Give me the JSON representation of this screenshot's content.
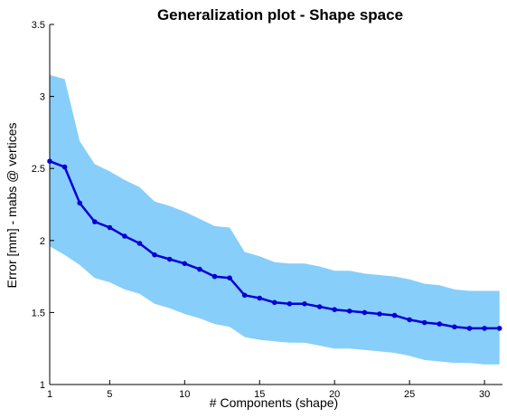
{
  "chart_data": {
    "type": "line",
    "title": "Generalization plot - Shape space",
    "xlabel": "# Components (shape)",
    "ylabel": "Error [mm] - mabs @ vertices",
    "xlim": [
      1,
      31.2
    ],
    "ylim": [
      1,
      3.5
    ],
    "xticks": [
      1,
      5,
      10,
      15,
      20,
      25,
      30
    ],
    "yticks": [
      1,
      1.5,
      2,
      2.5,
      3,
      3.5
    ],
    "grid": false,
    "colors": {
      "line": "#0000d6",
      "band": "#87cefa"
    },
    "series": [
      {
        "x": [
          1,
          2,
          3,
          4,
          5,
          6,
          7,
          8,
          9,
          10,
          11,
          12,
          13,
          14,
          15,
          16,
          17,
          18,
          19,
          20,
          21,
          22,
          23,
          24,
          25,
          26,
          27,
          28,
          29,
          30,
          31
        ],
        "y": [
          2.55,
          2.51,
          2.26,
          2.13,
          2.09,
          2.03,
          1.98,
          1.9,
          1.87,
          1.84,
          1.8,
          1.75,
          1.74,
          1.62,
          1.6,
          1.57,
          1.56,
          1.56,
          1.54,
          1.52,
          1.51,
          1.5,
          1.49,
          1.48,
          1.45,
          1.43,
          1.42,
          1.4,
          1.39,
          1.39,
          1.39
        ],
        "upper": [
          3.15,
          3.12,
          2.69,
          2.53,
          2.48,
          2.42,
          2.37,
          2.27,
          2.24,
          2.2,
          2.15,
          2.1,
          2.09,
          1.92,
          1.89,
          1.85,
          1.84,
          1.84,
          1.82,
          1.79,
          1.79,
          1.77,
          1.76,
          1.75,
          1.73,
          1.7,
          1.69,
          1.66,
          1.65,
          1.65,
          1.65
        ],
        "lower": [
          1.96,
          1.9,
          1.83,
          1.74,
          1.71,
          1.66,
          1.63,
          1.56,
          1.53,
          1.49,
          1.46,
          1.42,
          1.4,
          1.33,
          1.31,
          1.3,
          1.29,
          1.29,
          1.27,
          1.25,
          1.25,
          1.24,
          1.23,
          1.22,
          1.2,
          1.17,
          1.16,
          1.15,
          1.15,
          1.14,
          1.14
        ]
      }
    ]
  }
}
